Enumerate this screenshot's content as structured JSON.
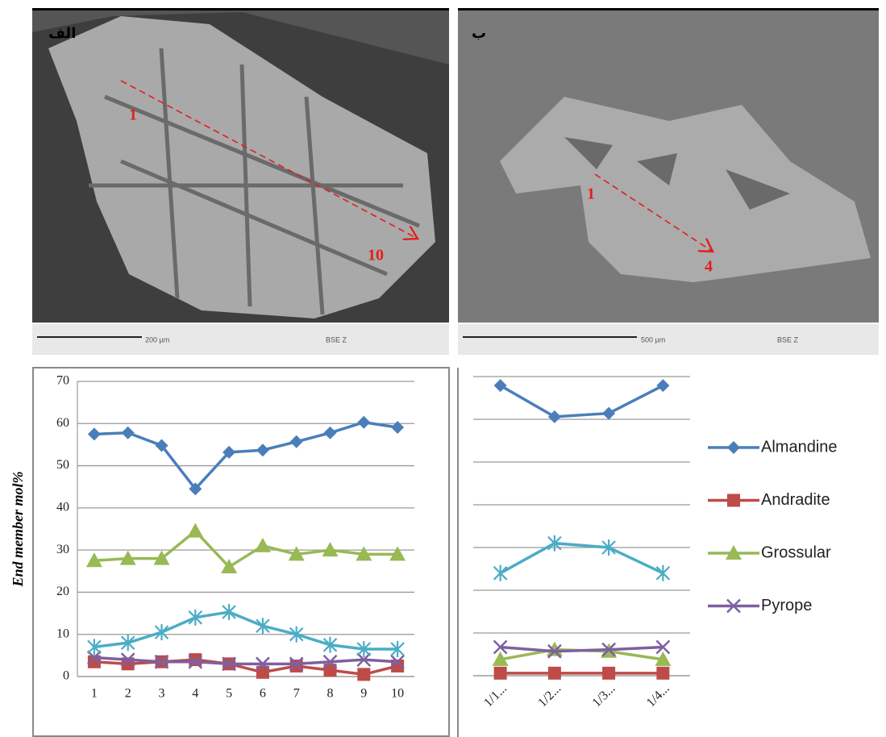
{
  "panels": [
    {
      "tag": "الف",
      "start": "1",
      "end": "10",
      "scale": "200 µm",
      "detector": "BSE Z"
    },
    {
      "tag": "ب",
      "start": "1",
      "end": "4",
      "scale": "500 µm",
      "detector": "BSE Z"
    }
  ],
  "chart_data": [
    {
      "type": "line",
      "y_label": "End member mol%",
      "categories": [
        "1",
        "2",
        "3",
        "4",
        "5",
        "6",
        "7",
        "8",
        "9",
        "10"
      ],
      "ylim": [
        0,
        70
      ],
      "yticks": [
        0,
        10,
        20,
        30,
        40,
        50,
        60,
        70
      ],
      "grid": true,
      "ytick_labels": true,
      "series": [
        {
          "name": "Almandine",
          "color": "#4a7ebb",
          "marker": "diamond",
          "values": [
            57.5,
            57.8,
            54.8,
            44.5,
            53.2,
            53.7,
            55.7,
            57.8,
            60.3,
            59.1
          ]
        },
        {
          "name": "Andradite",
          "color": "#be4b48",
          "marker": "square",
          "values": [
            3.5,
            3,
            3.5,
            4,
            3,
            1,
            2.5,
            1.5,
            0.5,
            2.5
          ]
        },
        {
          "name": "Grossular",
          "color": "#98b954",
          "marker": "triangle",
          "values": [
            27.5,
            28,
            28,
            34.5,
            26,
            31,
            29,
            30,
            29,
            29
          ]
        },
        {
          "name": "Pyrope",
          "color": "#7d60a0",
          "marker": "x",
          "values": [
            4.5,
            4,
            3.5,
            3.5,
            3,
            3,
            3,
            3.5,
            4,
            3.5
          ]
        },
        {
          "color": "#4bacc6",
          "marker": "star",
          "values": [
            7,
            8,
            10.5,
            14,
            15.3,
            12,
            10,
            7.5,
            6.5,
            6.5
          ]
        }
      ]
    },
    {
      "type": "line",
      "legend": "right",
      "categories": [
        "1/1...",
        "1/2...",
        "1/3...",
        "1/4..."
      ],
      "ylim": [
        0,
        70
      ],
      "yticks": [
        0,
        10,
        20,
        30,
        40,
        50,
        60,
        70
      ],
      "grid": true,
      "ytick_labels": false,
      "series": [
        {
          "name": "Almandine",
          "color": "#4a7ebb",
          "marker": "diamond",
          "values": [
            67.9,
            60.6,
            61.4,
            67.9
          ]
        },
        {
          "name": "Andradite",
          "color": "#be4b48",
          "marker": "square",
          "values": [
            0.6,
            0.6,
            0.6,
            0.6
          ]
        },
        {
          "name": "Grossular",
          "color": "#98b954",
          "marker": "triangle",
          "values": [
            3.8,
            6.1,
            5.7,
            3.8
          ]
        },
        {
          "name": "Pyrope",
          "color": "#7d60a0",
          "marker": "x",
          "values": [
            6.7,
            5.7,
            6.1,
            6.7
          ]
        },
        {
          "color": "#4bacc6",
          "marker": "star",
          "values": [
            24,
            31,
            30,
            24
          ]
        }
      ]
    }
  ]
}
